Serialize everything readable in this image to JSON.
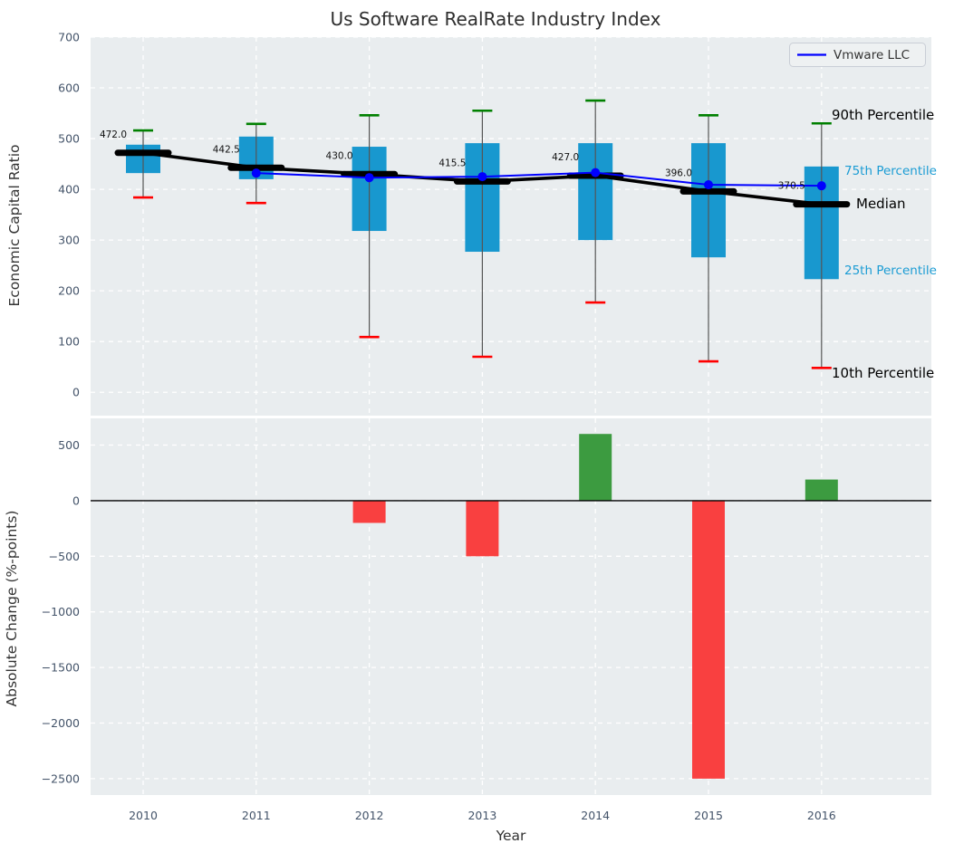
{
  "title": "Us Software RealRate Industry Index",
  "axes": {
    "top_ylabel": "Economic Capital Ratio",
    "bottom_ylabel": "Absolute Change (%-points)",
    "xlabel": "Year"
  },
  "legend": {
    "label": "Vmware LLC"
  },
  "annotations": {
    "p90": "90th Percentile",
    "p75": "75th Percentile",
    "median": "Median",
    "p25": "25th Percentile",
    "p10": "10th Percentile"
  },
  "colors": {
    "box_fill": "#1898cf",
    "whisker": "#555555",
    "cap_90": "#008000",
    "cap_10": "#ff0000",
    "median_line": "#000000",
    "company_line": "#0000ff",
    "bar_positive": "#3c9b40",
    "bar_negative": "#f94040",
    "panel_bg": "#e9edef",
    "grid": "#ffffff",
    "tick_text": "#44546a",
    "label_text": "#333333",
    "title_text": "#2e2e2e",
    "pct_label_blue": "#1b9cd4",
    "legend_bg": "#eef1f2",
    "legend_border": "#c9ced6",
    "zero_line": "#000000"
  },
  "chart_data": [
    {
      "type": "box",
      "title": "Us Software RealRate Industry Index",
      "ylabel": "Economic Capital Ratio",
      "years": [
        2010,
        2011,
        2012,
        2013,
        2014,
        2015,
        2016
      ],
      "yticks": [
        0,
        100,
        200,
        300,
        400,
        500,
        600,
        700
      ],
      "ylim": [
        -46,
        700
      ],
      "grid": true,
      "legend_position": "upper right",
      "series": {
        "p90": [
          516,
          529,
          546,
          555,
          575,
          546,
          530
        ],
        "p75": [
          488,
          504,
          484,
          491,
          491,
          491,
          445
        ],
        "median": [
          472.0,
          442.5,
          430.0,
          415.5,
          427.0,
          396.0,
          370.5
        ],
        "p25": [
          432,
          420,
          318,
          277,
          300,
          266,
          223
        ],
        "p10": [
          384,
          373,
          109,
          70,
          177,
          61,
          48
        ],
        "vmware_llc": [
          null,
          432,
          423,
          425,
          433,
          409,
          407
        ]
      },
      "median_labels": [
        "472.0",
        "442.5",
        "430.0",
        "415.5",
        "427.0",
        "396.0",
        "370.5"
      ]
    },
    {
      "type": "bar",
      "ylabel": "Absolute Change (%-points)",
      "xlabel": "Year",
      "categories": [
        2010,
        2011,
        2012,
        2013,
        2014,
        2015,
        2016
      ],
      "values": [
        0,
        0,
        -200,
        -500,
        600,
        -2500,
        190
      ],
      "yticks": [
        500,
        0,
        -500,
        -1000,
        -1500,
        -2000,
        -2500
      ],
      "ytick_labels": [
        "500",
        "0",
        "−500",
        "−1000",
        "−1500",
        "−2000",
        "−2500"
      ],
      "ylim": [
        -2650,
        740
      ],
      "grid": true
    }
  ]
}
